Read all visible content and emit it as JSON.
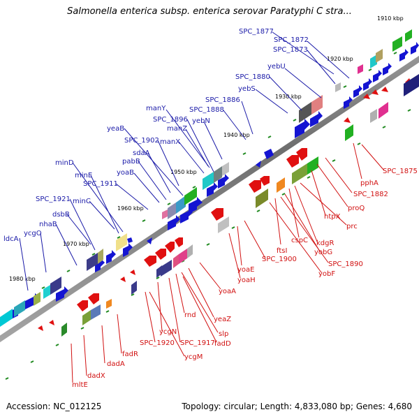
{
  "title": "Salmonella enterica subsp. enterica serovar Paratyphi C stra...",
  "footer": {
    "accession": "Accession: NC_012125",
    "summary": "Topology: circular; Length: 4,833,080 bp; Genes: 4,680"
  },
  "scale_labels": [
    "1910 kbp",
    "1920 kbp",
    "1930 kbp",
    "1940 kbp",
    "1950 kbp",
    "1960 kbp",
    "1970 kbp",
    "1980 kbp"
  ],
  "plus_labels": [
    "SPC_1877",
    "SPC_1872",
    "SPC_1873",
    "yebU",
    "SPC_1880",
    "yebS",
    "SPC_1886",
    "manY",
    "SPC_1896",
    "SPC_1888",
    "manZ",
    "yebN",
    "yeaB",
    "SPC_1902",
    "manX",
    "sdaA",
    "pabB",
    "minD",
    "yoaB",
    "minE",
    "SPC_1911",
    "SPC_1921",
    "minC",
    "dsbB",
    "nhaB",
    "ycgO",
    "ldcA"
  ],
  "minus_labels": [
    "pphA",
    "SPC_1875",
    "SPC_1882",
    "proQ",
    "htpX",
    "prc",
    "kdgR",
    "cspC",
    "yobG",
    "SPC_1890",
    "ftsI",
    "yobF",
    "SPC_1900",
    "yoaE",
    "yoaH",
    "yoaA",
    "rnd",
    "yeaZ",
    "slp",
    "ycgN",
    "SPC_1917",
    "fadD",
    "SPC_1920",
    "ycgM",
    "fadR",
    "dadA",
    "dadX",
    "mltE"
  ]
}
